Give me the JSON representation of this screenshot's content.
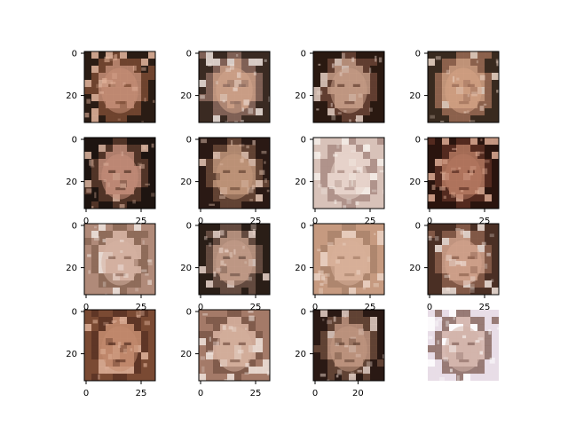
{
  "figure": {
    "grid": "4x4",
    "background": "#ffffff",
    "panels": [
      {
        "id": "r1c1",
        "y_ticks": [
          "0",
          "20"
        ],
        "x_ticks": [],
        "palette": [
          "#2a1c14",
          "#c99078",
          "#7a4a32",
          "#e8b8a0"
        ]
      },
      {
        "id": "r1c2",
        "y_ticks": [
          "0",
          "20"
        ],
        "x_ticks": [],
        "palette": [
          "#3b2a22",
          "#d3a58c",
          "#8c6a5e",
          "#f2e6e0"
        ]
      },
      {
        "id": "r1c3",
        "y_ticks": [
          "0",
          "20"
        ],
        "x_ticks": [],
        "palette": [
          "#2a1a12",
          "#caa08a",
          "#6a4436",
          "#e7d1c6"
        ]
      },
      {
        "id": "r1c4",
        "y_ticks": [
          "0",
          "20"
        ],
        "x_ticks": [],
        "palette": [
          "#3a2a20",
          "#d7a487",
          "#9a6b55",
          "#f0d9ca"
        ]
      },
      {
        "id": "r2c1",
        "y_ticks": [
          "0",
          "20"
        ],
        "x_ticks": [
          "0",
          "25"
        ],
        "palette": [
          "#1f1410",
          "#c88f7b",
          "#5b3a2c",
          "#e1b7a2"
        ]
      },
      {
        "id": "r2c2",
        "y_ticks": [
          "0",
          "20"
        ],
        "x_ticks": [
          "0",
          "25"
        ],
        "palette": [
          "#2a1a14",
          "#c69a7e",
          "#6b4a38",
          "#e9c9b6"
        ]
      },
      {
        "id": "r2c3",
        "y_ticks": [
          "0",
          "20"
        ],
        "x_ticks": [
          "0",
          "25"
        ],
        "palette": [
          "#d8c2b8",
          "#e8d3cb",
          "#a98b82",
          "#f6efe9"
        ]
      },
      {
        "id": "r2c4",
        "y_ticks": [
          "0",
          "20"
        ],
        "x_ticks": [
          "0",
          "25"
        ],
        "palette": [
          "#2a140e",
          "#b87a62",
          "#5a2e22",
          "#e0ad95"
        ]
      },
      {
        "id": "r3c1",
        "y_ticks": [
          "0",
          "20"
        ],
        "x_ticks": [
          "0",
          "25"
        ],
        "palette": [
          "#b08a79",
          "#d6b3a3",
          "#8a6655",
          "#f0e5e0"
        ]
      },
      {
        "id": "r3c2",
        "y_ticks": [
          "0",
          "20"
        ],
        "x_ticks": [
          "0",
          "25"
        ],
        "palette": [
          "#2a1e18",
          "#c8a08c",
          "#6d5246",
          "#ebd6cc"
        ]
      },
      {
        "id": "r3c3",
        "y_ticks": [
          "0",
          "20"
        ],
        "x_ticks": [
          "0",
          "25"
        ],
        "palette": [
          "#c59a80",
          "#d8b19a",
          "#a9826b",
          "#ebd4c5"
        ]
      },
      {
        "id": "r3c4",
        "y_ticks": [
          "0",
          "20"
        ],
        "x_ticks": [
          "0",
          "25"
        ],
        "palette": [
          "#4a2f24",
          "#d5a68f",
          "#8b5f4c",
          "#f3e6df"
        ]
      },
      {
        "id": "r4c1",
        "y_ticks": [
          "0",
          "20"
        ],
        "x_ticks": [
          "0",
          "25"
        ],
        "palette": [
          "#7a4a34",
          "#c48c70",
          "#5a3324",
          "#e0b39b"
        ]
      },
      {
        "id": "r4c2",
        "y_ticks": [
          "0",
          "20"
        ],
        "x_ticks": [
          "0",
          "25"
        ],
        "palette": [
          "#a47a68",
          "#d6b09f",
          "#7b5748",
          "#f1e4dd"
        ]
      },
      {
        "id": "r4c3",
        "y_ticks": [
          "0",
          "20"
        ],
        "x_ticks": [
          "0",
          "20"
        ],
        "palette": [
          "#2a1a14",
          "#c59a84",
          "#6a4a3a",
          "#e8d2c8"
        ]
      },
      {
        "id": "r4c4",
        "y_ticks": [],
        "x_ticks": [],
        "palette": [
          "#e7dde6",
          "#d2b3a8",
          "#8a6a62",
          "#ffffff"
        ]
      }
    ]
  }
}
